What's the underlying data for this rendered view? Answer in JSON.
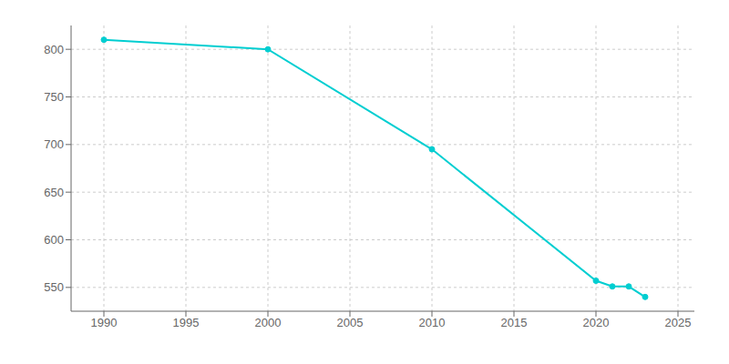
{
  "chart_data": {
    "type": "line",
    "x": [
      1990,
      2000,
      2010,
      2020,
      2021,
      2022,
      2023
    ],
    "values": [
      810,
      800,
      695,
      557,
      551,
      551,
      540
    ],
    "color": "#00CED1",
    "marker": "circle",
    "xlim": [
      1988,
      2026
    ],
    "ylim": [
      525,
      825
    ],
    "xticks": [
      1990,
      1995,
      2000,
      2005,
      2010,
      2015,
      2020,
      2025
    ],
    "yticks": [
      550,
      600,
      650,
      700,
      750,
      800
    ],
    "grid": true
  }
}
